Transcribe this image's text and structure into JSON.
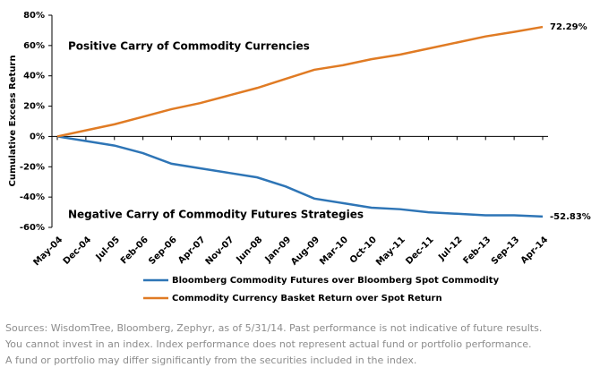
{
  "chart_data": {
    "type": "line",
    "y_label": "Cumulative Excess Return",
    "annotations": [
      "Positive Carry of Commodity Currencies",
      "Negative Carry of Commodity Futures Strategies"
    ],
    "categories": [
      "May-04",
      "Dec-04",
      "Jul-05",
      "Feb-06",
      "Sep-06",
      "Apr-07",
      "Nov-07",
      "Jun-08",
      "Jan-09",
      "Aug-09",
      "Mar-10",
      "Oct-10",
      "May-11",
      "Dec-11",
      "Jul-12",
      "Feb-13",
      "Sep-13",
      "Apr-14"
    ],
    "series": [
      {
        "name": "Bloomberg Commodity Futures over Bloomberg Spot Commodity",
        "color": "#2e75b6",
        "values": [
          0,
          -3,
          -6,
          -11,
          -18,
          -21,
          -24,
          -27,
          -33,
          -41,
          -44,
          -47,
          -48,
          -50,
          -51,
          -52,
          -52,
          -52.83
        ],
        "value_labels": [
          null,
          null,
          null,
          null,
          null,
          null,
          null,
          null,
          null,
          null,
          null,
          null,
          null,
          null,
          null,
          null,
          null,
          "-52.83%"
        ]
      },
      {
        "name": "Commodity Currency Basket Return over Spot Return",
        "color": "#e07b24",
        "values": [
          0,
          4,
          8,
          13,
          18,
          22,
          27,
          32,
          38,
          44,
          47,
          51,
          54,
          58,
          62,
          66,
          69,
          72.29
        ],
        "value_labels": [
          null,
          null,
          null,
          null,
          null,
          null,
          null,
          null,
          null,
          null,
          null,
          null,
          null,
          null,
          null,
          null,
          null,
          "72.29%"
        ]
      }
    ],
    "ylim": [
      -60,
      80
    ],
    "yticks": [
      {
        "value": 80,
        "label": "80%"
      },
      {
        "value": 60,
        "label": "60%"
      },
      {
        "value": 40,
        "label": "40%"
      },
      {
        "value": 20,
        "label": "20%"
      },
      {
        "value": 0,
        "label": "0%"
      },
      {
        "value": -20,
        "label": "-20%"
      },
      {
        "value": -40,
        "label": "-40%"
      },
      {
        "value": -60,
        "label": "-60%"
      }
    ],
    "grid": false,
    "notes": [
      "Sources: WisdomTree, Bloomberg, Zephyr, as of 5/31/14. Past performance is not indicative of future results.",
      "You cannot invest in an index. Index performance does not represent actual fund or portfolio performance.",
      "A fund or portfolio may differ significantly from the securities included in the index."
    ]
  }
}
